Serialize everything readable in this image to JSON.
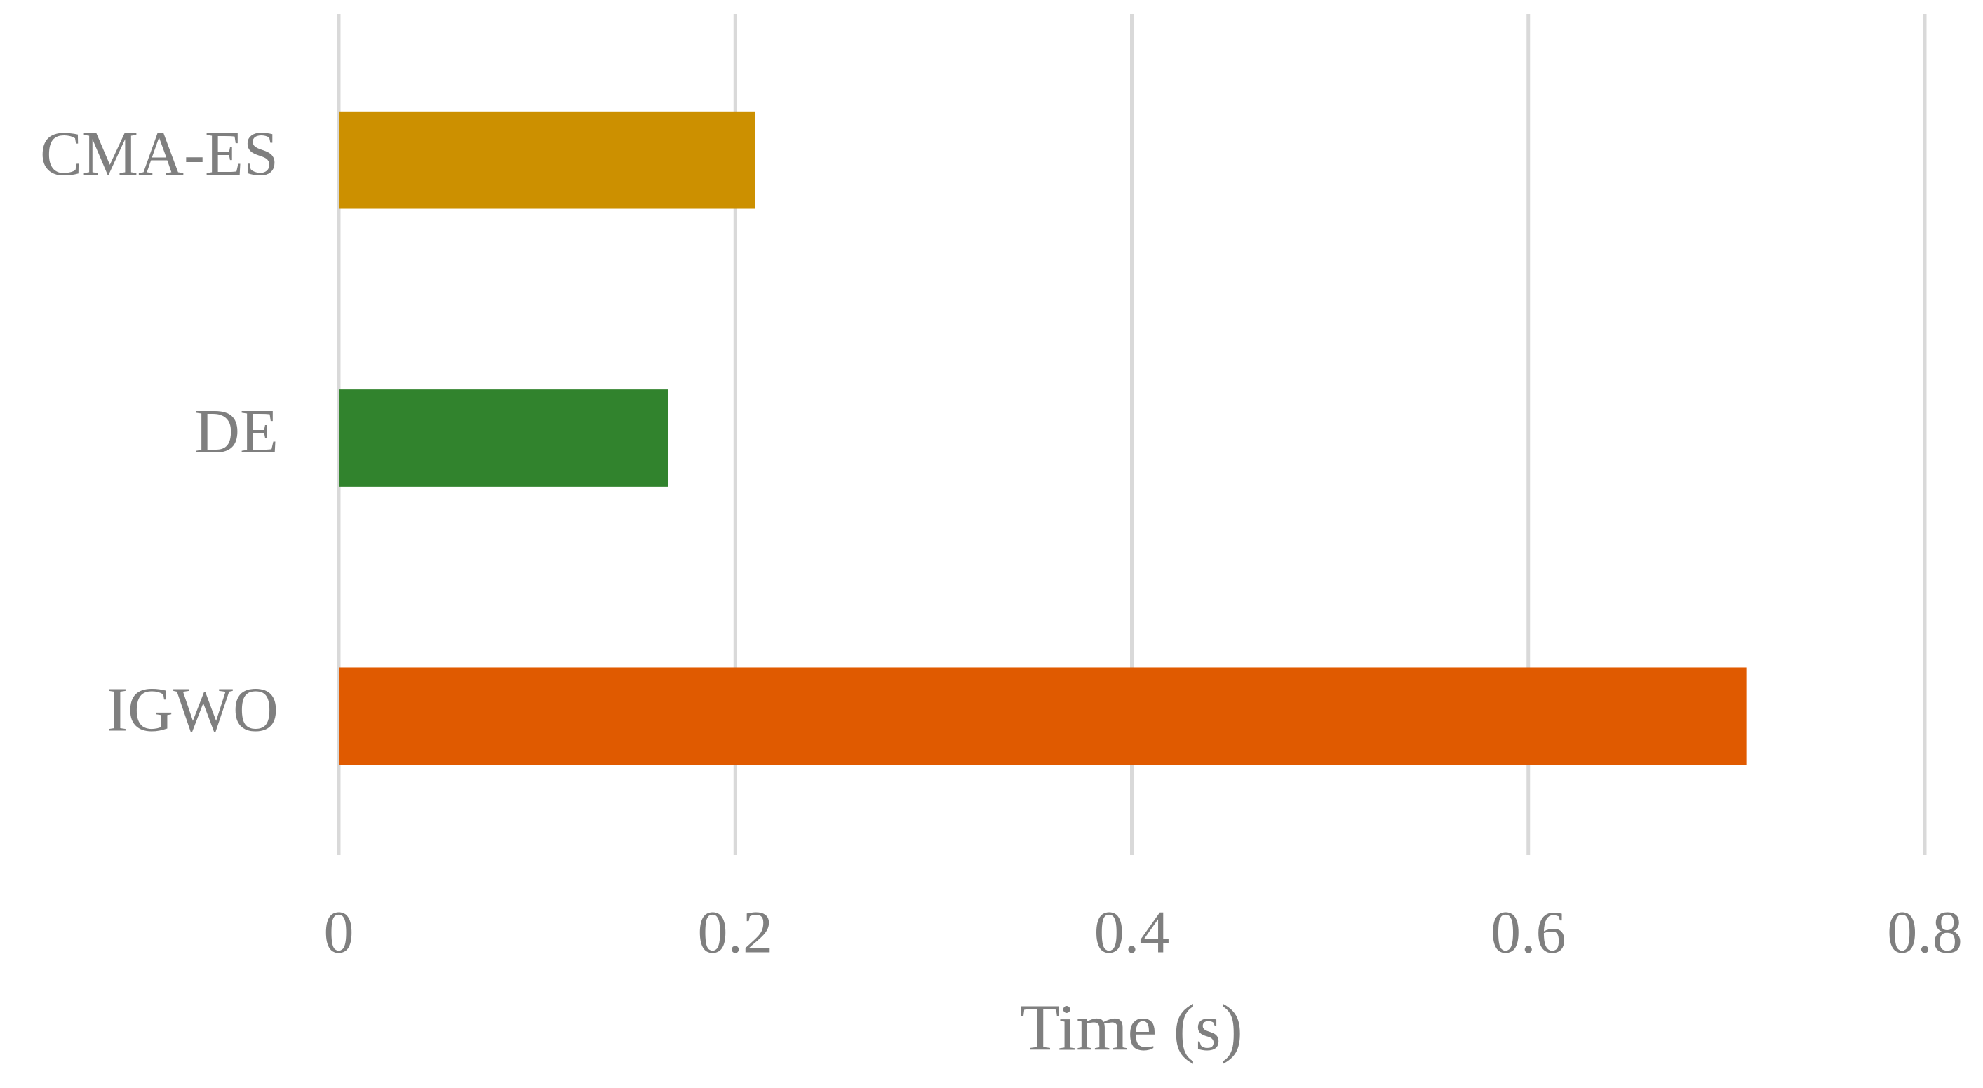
{
  "chart_data": {
    "type": "bar",
    "orientation": "horizontal",
    "categories": [
      "CMA-ES",
      "DE",
      "IGWO"
    ],
    "values": [
      0.21,
      0.166,
      0.71
    ],
    "colors": [
      "#cc9000",
      "#31832d",
      "#e05a00"
    ],
    "xlabel": "Time (s)",
    "xlim": [
      0,
      0.8
    ],
    "xticks": [
      0,
      0.2,
      0.4,
      0.6,
      0.8
    ],
    "grid": true
  }
}
